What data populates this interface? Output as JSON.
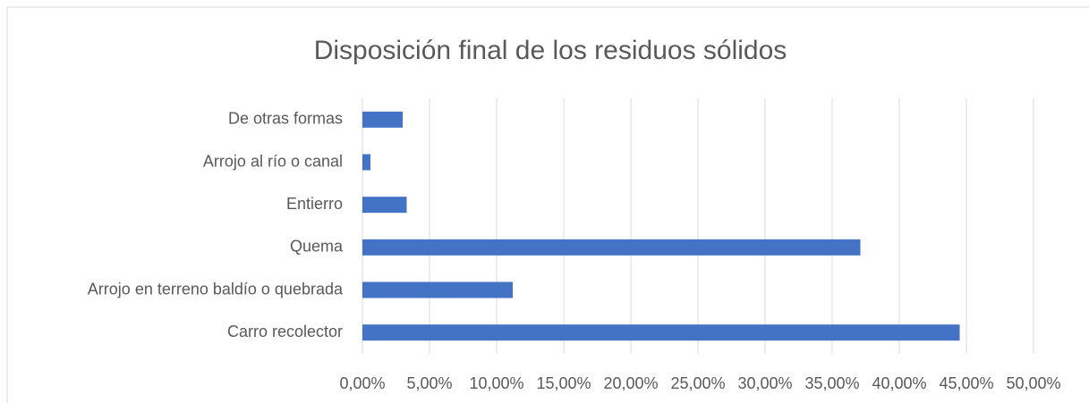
{
  "chart_data": {
    "type": "bar",
    "orientation": "horizontal",
    "title": "Disposición final de los residuos sólidos",
    "categories": [
      "De otras formas",
      "Arrojo al río o canal",
      "Entierro",
      "Quema",
      "Arrojo en terreno baldío o quebrada",
      "Carro recolector"
    ],
    "values": [
      3.0,
      0.6,
      3.3,
      37.1,
      11.2,
      44.5
    ],
    "color": "#4472c4",
    "xlim": [
      0,
      50
    ],
    "xticks": [
      {
        "value": 0,
        "label": "0,00%"
      },
      {
        "value": 5,
        "label": "5,00%"
      },
      {
        "value": 10,
        "label": "10,00%"
      },
      {
        "value": 15,
        "label": "15,00%"
      },
      {
        "value": 20,
        "label": "20,00%"
      },
      {
        "value": 25,
        "label": "25,00%"
      },
      {
        "value": 30,
        "label": "30,00%"
      },
      {
        "value": 35,
        "label": "35,00%"
      },
      {
        "value": 40,
        "label": "40,00%"
      },
      {
        "value": 45,
        "label": "45,00%"
      },
      {
        "value": 50,
        "label": "50,00%"
      }
    ],
    "grid": true
  }
}
